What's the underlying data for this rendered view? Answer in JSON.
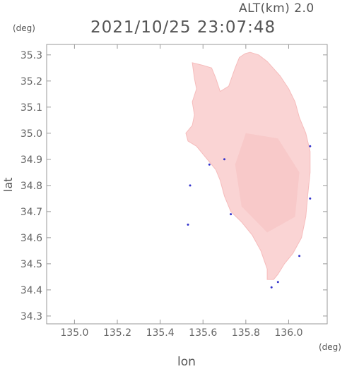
{
  "header": {
    "alt_label": "ALT(km) 2.0",
    "timestamp": "2021/10/25 23:07:48"
  },
  "chart_data": {
    "type": "heatmap",
    "title": "2021/10/25 23:07:48",
    "subtitle": "ALT(km) 2.0",
    "xlabel": "lon",
    "ylabel": "lat",
    "x_unit": "(deg)",
    "y_unit": "(deg)",
    "xlim": [
      134.87,
      136.18
    ],
    "ylim": [
      34.27,
      35.34
    ],
    "x_ticks": [
      135.0,
      135.2,
      135.4,
      135.6,
      135.8,
      136.0
    ],
    "x_tick_labels": [
      "135.0",
      "135.2",
      "135.4",
      "135.6",
      "135.8",
      "136.0"
    ],
    "y_ticks": [
      34.3,
      34.4,
      34.5,
      34.6,
      34.7,
      34.8,
      34.9,
      35.0,
      35.1,
      35.2,
      35.3
    ],
    "y_tick_labels": [
      "34.3",
      "34.4",
      "34.5",
      "34.6",
      "34.7",
      "34.8",
      "34.9",
      "35.0",
      "35.1",
      "35.2",
      "35.3"
    ],
    "grid": false,
    "colors": {
      "fill": "#fad4d4",
      "fill_dark": "#f6bcbc",
      "edge": "#3333cc",
      "frame": "#999999"
    },
    "field_outline": [
      [
        135.797,
        35.305
      ],
      [
        135.82,
        35.31
      ],
      [
        135.86,
        35.3
      ],
      [
        135.9,
        35.275
      ],
      [
        135.96,
        35.22
      ],
      [
        136.0,
        35.17
      ],
      [
        136.03,
        35.12
      ],
      [
        136.05,
        35.06
      ],
      [
        136.08,
        35.0
      ],
      [
        136.1,
        34.93
      ],
      [
        136.1,
        34.85
      ],
      [
        136.09,
        34.77
      ],
      [
        136.08,
        34.68
      ],
      [
        136.06,
        34.6
      ],
      [
        136.02,
        34.54
      ],
      [
        135.98,
        34.5
      ],
      [
        135.95,
        34.46
      ],
      [
        135.93,
        34.44
      ],
      [
        135.9,
        34.44
      ],
      [
        135.9,
        34.48
      ],
      [
        135.87,
        34.55
      ],
      [
        135.83,
        34.61
      ],
      [
        135.78,
        34.66
      ],
      [
        135.73,
        34.7
      ],
      [
        135.7,
        34.76
      ],
      [
        135.68,
        34.82
      ],
      [
        135.66,
        34.86
      ],
      [
        135.62,
        34.9
      ],
      [
        135.6,
        34.92
      ],
      [
        135.57,
        34.95
      ],
      [
        135.53,
        34.97
      ],
      [
        135.52,
        35.0
      ],
      [
        135.55,
        35.03
      ],
      [
        135.56,
        35.07
      ],
      [
        135.55,
        35.12
      ],
      [
        135.57,
        35.17
      ],
      [
        135.56,
        35.21
      ],
      [
        135.55,
        35.27
      ],
      [
        135.6,
        35.26
      ],
      [
        135.64,
        35.25
      ],
      [
        135.66,
        35.21
      ],
      [
        135.68,
        35.16
      ],
      [
        135.72,
        35.18
      ],
      [
        135.75,
        35.25
      ],
      [
        135.77,
        35.29
      ]
    ],
    "edge_samples": [
      [
        135.54,
        34.8
      ],
      [
        135.53,
        34.65
      ],
      [
        135.63,
        34.88
      ],
      [
        135.7,
        34.9
      ],
      [
        135.73,
        34.69
      ],
      [
        135.92,
        34.41
      ],
      [
        135.95,
        34.43
      ],
      [
        136.05,
        34.53
      ],
      [
        136.1,
        34.95
      ],
      [
        136.1,
        34.75
      ]
    ]
  }
}
